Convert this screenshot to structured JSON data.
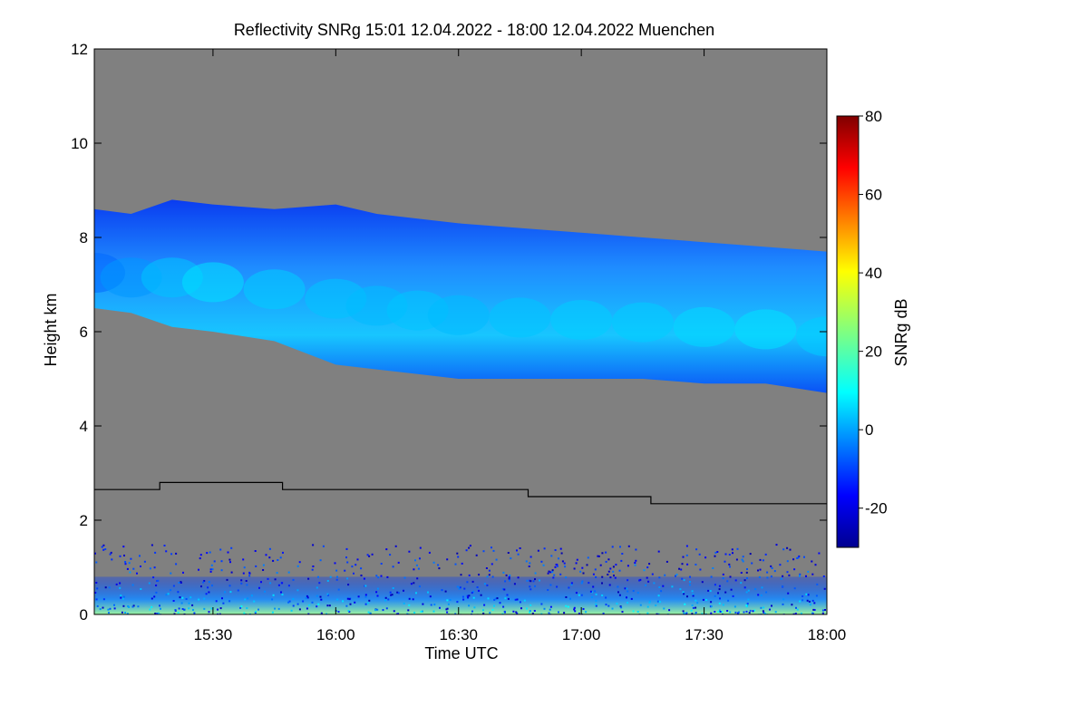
{
  "chart_data": {
    "type": "heatmap",
    "title": "Reflectivity SNRg   15:01 12.04.2022 - 18:00 12.04.2022 Muenchen",
    "xlabel": "Time UTC",
    "ylabel": "Height km",
    "x_range": [
      "15:01",
      "18:00"
    ],
    "x_ticks": [
      {
        "time": "15:30",
        "label": "15:30"
      },
      {
        "time": "16:00",
        "label": "16:00"
      },
      {
        "time": "16:30",
        "label": "16:30"
      },
      {
        "time": "17:00",
        "label": "17:00"
      },
      {
        "time": "17:30",
        "label": "17:30"
      },
      {
        "time": "18:00",
        "label": "18:00"
      }
    ],
    "ylim": [
      0,
      12
    ],
    "y_ticks": [
      0,
      2,
      4,
      6,
      8,
      10,
      12
    ],
    "background_color": "#808080",
    "colorbar": {
      "label": "SNRg dB",
      "range": [
        -30,
        80
      ],
      "ticks": [
        -20,
        0,
        20,
        40,
        60,
        80
      ],
      "colormap": "jet"
    },
    "cloud_layer": {
      "description_values": "approx. cloud base and top heights (km) vs time",
      "times": [
        "15:01",
        "15:10",
        "15:20",
        "15:30",
        "15:45",
        "16:00",
        "16:10",
        "16:20",
        "16:30",
        "16:45",
        "17:00",
        "17:15",
        "17:30",
        "17:45",
        "18:00"
      ],
      "top_km": [
        8.6,
        8.5,
        8.8,
        8.7,
        8.6,
        8.7,
        8.5,
        8.4,
        8.3,
        8.2,
        8.1,
        8.0,
        7.9,
        7.8,
        7.7
      ],
      "base_km": [
        6.5,
        6.4,
        6.1,
        6.0,
        5.8,
        5.3,
        5.2,
        5.1,
        5.0,
        5.0,
        5.0,
        5.0,
        4.9,
        4.9,
        4.7
      ],
      "core_snr_db": [
        -5,
        0,
        5,
        8,
        6,
        5,
        4,
        5,
        4,
        5,
        6,
        6,
        7,
        8,
        6
      ]
    },
    "threshold_line": {
      "color": "#000000",
      "segments": [
        {
          "from": "15:01",
          "to": "15:17",
          "height_km": 2.65
        },
        {
          "from": "15:17",
          "to": "15:47",
          "height_km": 2.8
        },
        {
          "from": "15:47",
          "to": "16:47",
          "height_km": 2.65
        },
        {
          "from": "16:47",
          "to": "17:17",
          "height_km": 2.5
        },
        {
          "from": "17:17",
          "to": "18:00",
          "height_km": 2.35
        }
      ]
    },
    "boundary_layer_echo": {
      "top_km": 1.5,
      "dense_top_km": 0.8,
      "snr_db_range": [
        -25,
        15
      ]
    }
  }
}
